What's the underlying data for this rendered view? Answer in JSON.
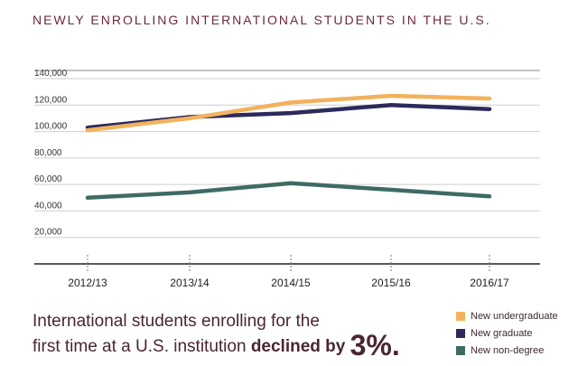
{
  "chart_data": {
    "type": "line",
    "title": "NEWLY ENROLLING INTERNATIONAL STUDENTS IN THE U.S.",
    "categories": [
      "2012/13",
      "2013/14",
      "2014/15",
      "2015/16",
      "2016/17"
    ],
    "ylim": [
      0,
      140000
    ],
    "y_ticks": [
      "20,000",
      "40,000",
      "60,000",
      "80,000",
      "100,000",
      "120,000",
      "140,000"
    ],
    "y_tick_values": [
      20000,
      40000,
      60000,
      80000,
      100000,
      120000,
      140000
    ],
    "grid": true,
    "legend_placement": "bottom-right",
    "series": [
      {
        "name": "New undergraduate",
        "color": "#f2b25c",
        "values": [
          101000,
          110000,
          122000,
          127000,
          125000
        ]
      },
      {
        "name": "New graduate",
        "color": "#2c2a5c",
        "values": [
          103000,
          111000,
          114000,
          120000,
          117000
        ]
      },
      {
        "name": "New non-degree",
        "color": "#3f6b63",
        "values": [
          50000,
          54000,
          61000,
          56000,
          51000
        ]
      }
    ]
  },
  "caption": {
    "line1": "International students enrolling for the",
    "line2_start": "first time at a U.S. institution ",
    "line2_strong": "declined by ",
    "line2_big": "3%",
    "line2_end": "."
  }
}
